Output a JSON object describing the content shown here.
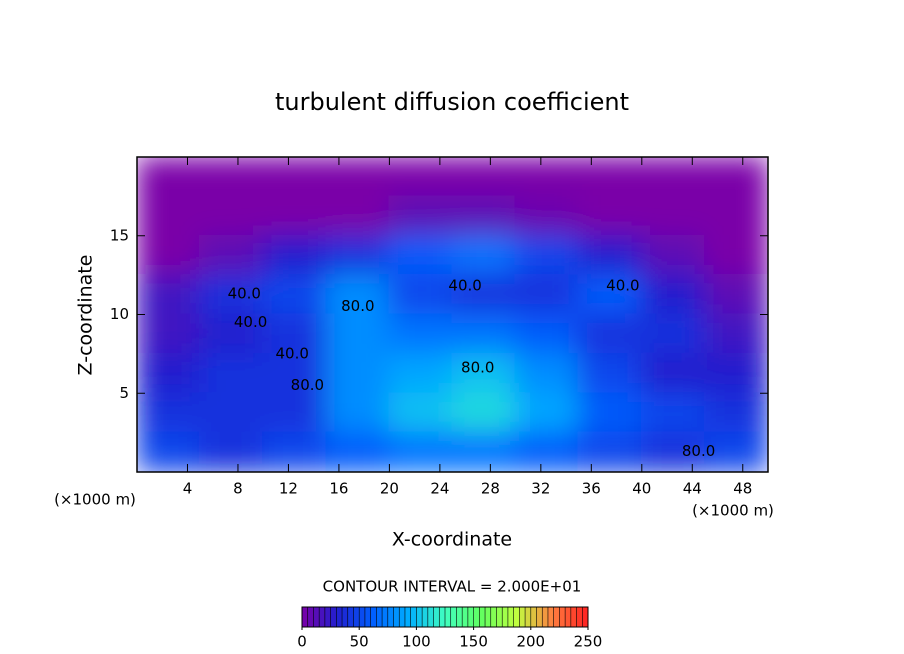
{
  "chart_data": {
    "type": "contour",
    "title": "turbulent diffusion coefficient",
    "xlabel": "X-coordinate",
    "ylabel": "Z-coordinate",
    "x_unit_labels": [
      "(×1000 m)",
      "(×1000 m)"
    ],
    "contour_interval": "CONTOUR INTERVAL = 2.000E+01",
    "xlim": [
      0,
      50
    ],
    "ylim": [
      0,
      20
    ],
    "xticks": [
      4,
      8,
      12,
      16,
      20,
      24,
      28,
      32,
      36,
      40,
      44,
      48
    ],
    "yticks": [
      5,
      10,
      15
    ],
    "clim": [
      0,
      250
    ],
    "cticks": [
      0,
      50,
      100,
      150,
      200,
      250
    ],
    "colormap": [
      "#7a00a8",
      "#2020d0",
      "#0060ff",
      "#00b0ff",
      "#40ffc0",
      "#60ff60",
      "#c0ff40",
      "#ff8040",
      "#ff2020"
    ],
    "grid": {
      "x": [
        2.5,
        7.5,
        12.5,
        17.5,
        22.5,
        27.5,
        32.5,
        37.5,
        42.5,
        47.5
      ],
      "z": [
        18.75,
        16.25,
        13.75,
        11.25,
        8.75,
        6.25,
        3.75,
        1.25
      ],
      "values": [
        [
          0,
          0,
          0,
          0,
          0,
          0,
          0,
          0,
          0,
          0
        ],
        [
          0,
          0,
          0,
          0,
          10,
          10,
          5,
          0,
          0,
          0
        ],
        [
          0,
          10,
          30,
          40,
          60,
          70,
          50,
          30,
          10,
          0
        ],
        [
          20,
          40,
          50,
          80,
          50,
          40,
          40,
          60,
          30,
          10
        ],
        [
          20,
          30,
          40,
          80,
          70,
          70,
          60,
          40,
          40,
          20
        ],
        [
          30,
          40,
          40,
          80,
          90,
          100,
          80,
          50,
          30,
          30
        ],
        [
          40,
          40,
          40,
          80,
          100,
          110,
          90,
          60,
          50,
          40
        ],
        [
          50,
          40,
          50,
          60,
          70,
          70,
          60,
          50,
          40,
          50
        ]
      ]
    },
    "contour_labels": [
      {
        "text": "40.0",
        "x": 8.5,
        "y": 11.3
      },
      {
        "text": "40.0",
        "x": 9,
        "y": 9.5
      },
      {
        "text": "40.0",
        "x": 12.3,
        "y": 7.5
      },
      {
        "text": "80.0",
        "x": 13.5,
        "y": 5.5
      },
      {
        "text": "80.0",
        "x": 17.5,
        "y": 10.5
      },
      {
        "text": "40.0",
        "x": 26,
        "y": 11.8
      },
      {
        "text": "40.0",
        "x": 38.5,
        "y": 11.8
      },
      {
        "text": "80.0",
        "x": 27,
        "y": 6.6
      },
      {
        "text": "80.0",
        "x": 44.5,
        "y": 1.3
      }
    ]
  }
}
